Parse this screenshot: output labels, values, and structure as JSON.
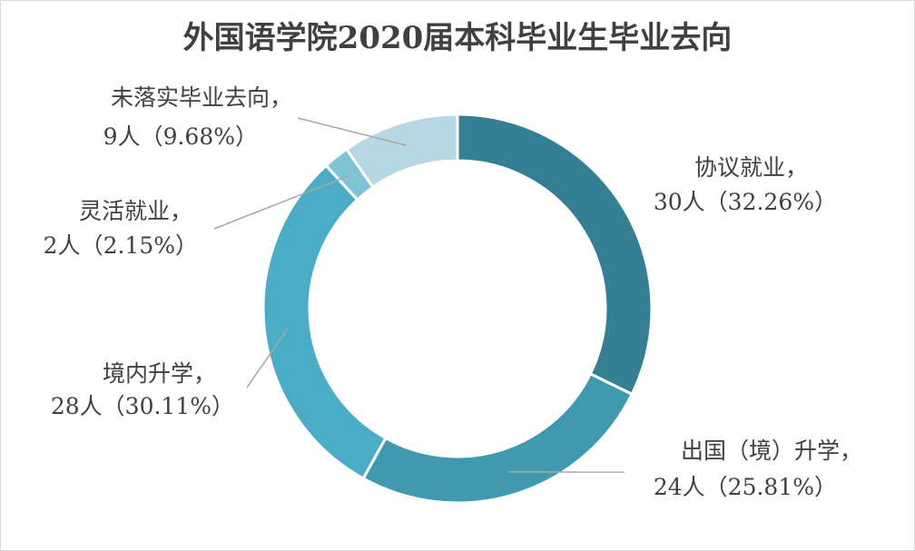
{
  "chart_data": {
    "type": "pie",
    "variant": "donut",
    "title": "外国语学院2020届本科毕业生毕业去向",
    "unit": "人",
    "slices": [
      {
        "name": "协议就业",
        "count": 30,
        "percent": 32.26,
        "color": "#347F93",
        "label_line1": "协议就业，",
        "label_line2": "30人（32.26%）"
      },
      {
        "name": "出国（境）升学",
        "count": 24,
        "percent": 25.81,
        "color": "#4199AF",
        "label_line1": "出国（境）升学，",
        "label_line2": "24人（25.81%）"
      },
      {
        "name": "境内升学",
        "count": 28,
        "percent": 30.11,
        "color": "#4BACC6",
        "label_line1": "境内升学，",
        "label_line2": "28人（30.11%）"
      },
      {
        "name": "灵活就业",
        "count": 2,
        "percent": 2.15,
        "color": "#7FC3D6",
        "label_line1": "灵活就业，",
        "label_line2": "2人（2.15%）"
      },
      {
        "name": "未落实毕业去向",
        "count": 9,
        "percent": 9.68,
        "color": "#B7D8E3",
        "label_line1": "未落实毕业去向，",
        "label_line2": "9人（9.68%）"
      }
    ],
    "legend": "none"
  }
}
